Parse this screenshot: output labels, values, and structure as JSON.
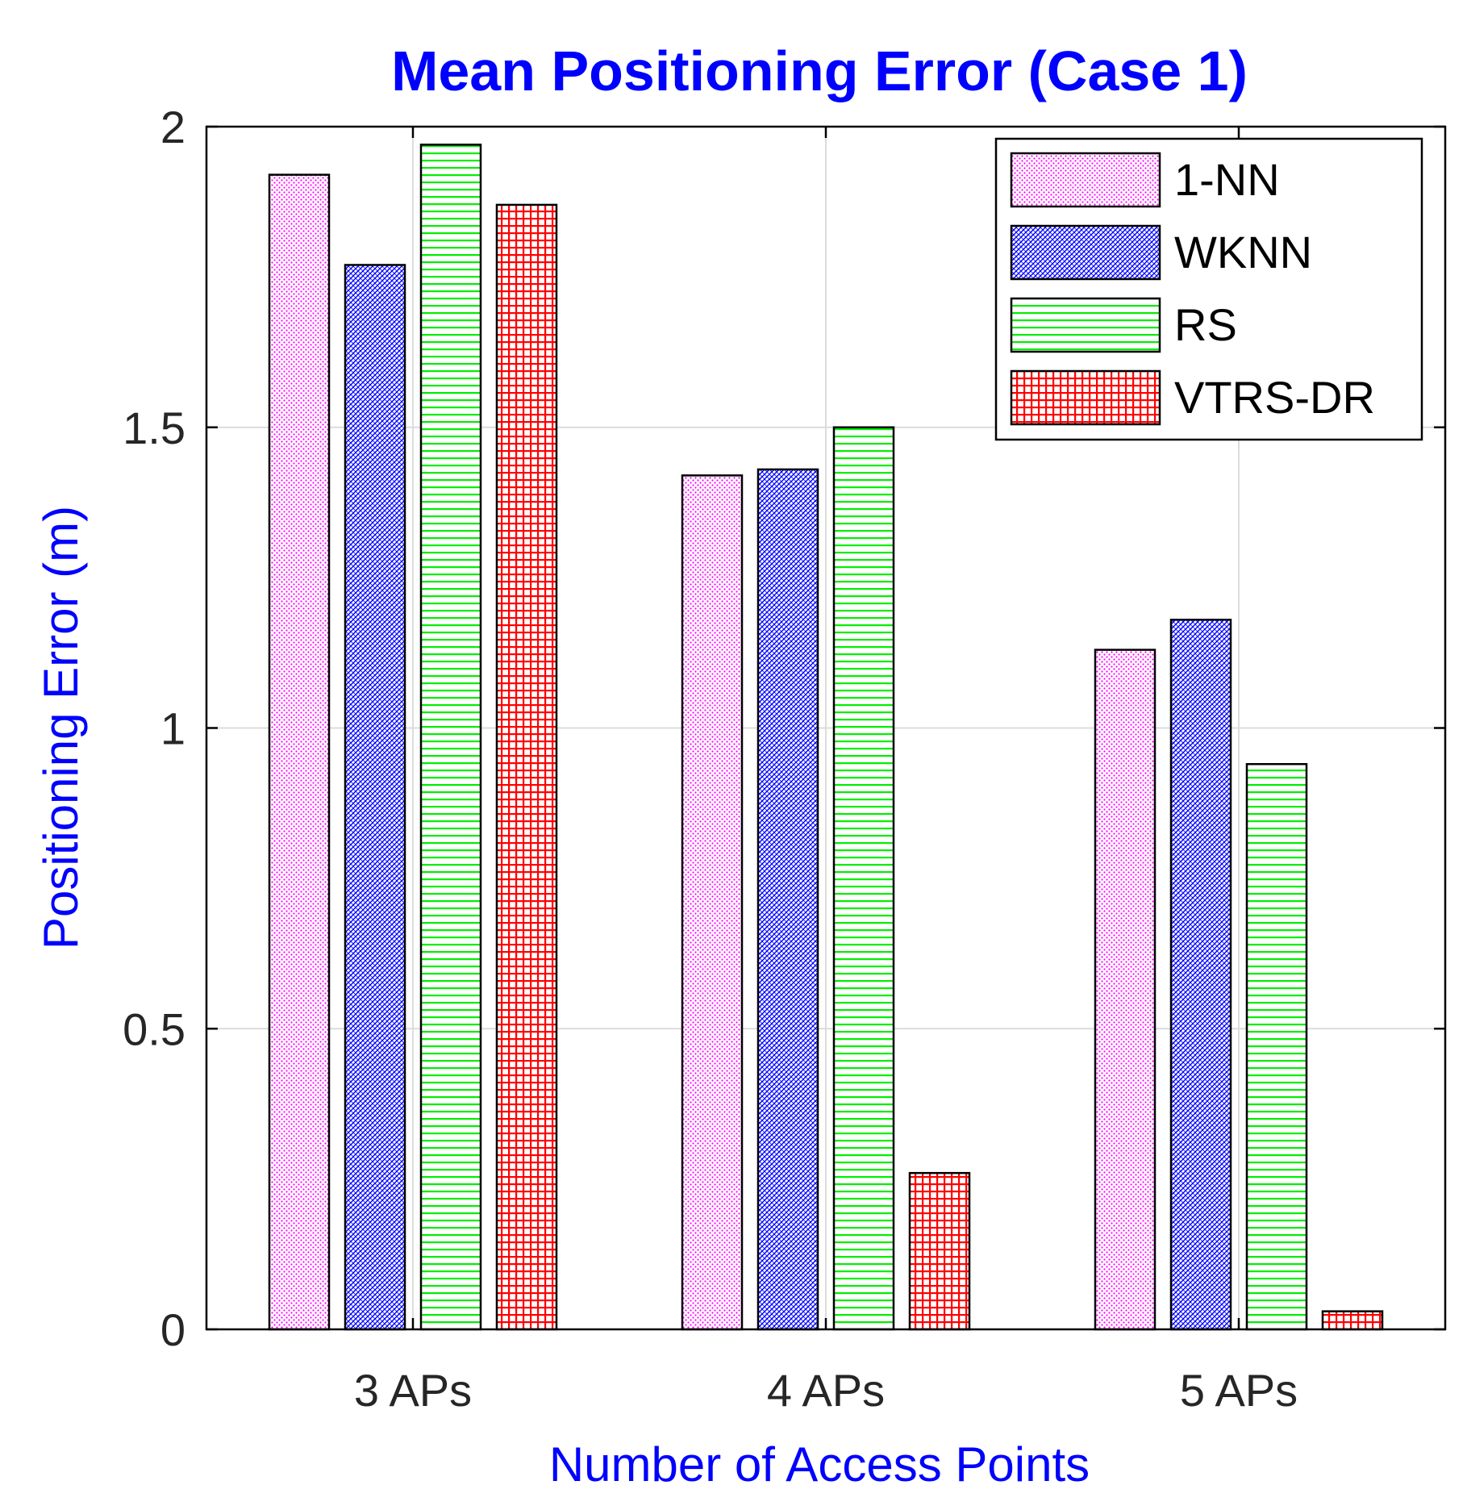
{
  "chart_data": {
    "type": "bar",
    "title": "Mean Positioning Error (Case 1)",
    "xlabel": "Number of Access Points",
    "ylabel": "Positioning Error (m)",
    "ylim": [
      0,
      2
    ],
    "yticks": [
      0,
      0.5,
      1,
      1.5,
      2
    ],
    "ytick_labels": [
      "0",
      "0.5",
      "1",
      "1.5",
      "2"
    ],
    "grid": true,
    "legend_position": "top-right",
    "categories": [
      "3 APs",
      "4 APs",
      "5 APs"
    ],
    "series": [
      {
        "name": "1-NN",
        "values": [
          1.92,
          1.42,
          1.13
        ],
        "color": "#ff00ff",
        "pattern": "dots"
      },
      {
        "name": "WKNN",
        "values": [
          1.77,
          1.43,
          1.18
        ],
        "color": "#0000ff",
        "pattern": "diagonal"
      },
      {
        "name": "RS",
        "values": [
          1.97,
          1.5,
          0.94
        ],
        "color": "#00ff00",
        "pattern": "horizontal"
      },
      {
        "name": "VTRS-DR",
        "values": [
          1.87,
          0.26,
          0.03
        ],
        "color": "#ff0000",
        "pattern": "grid"
      }
    ],
    "title_color": "#0000ff",
    "label_color": "#0000ff"
  }
}
